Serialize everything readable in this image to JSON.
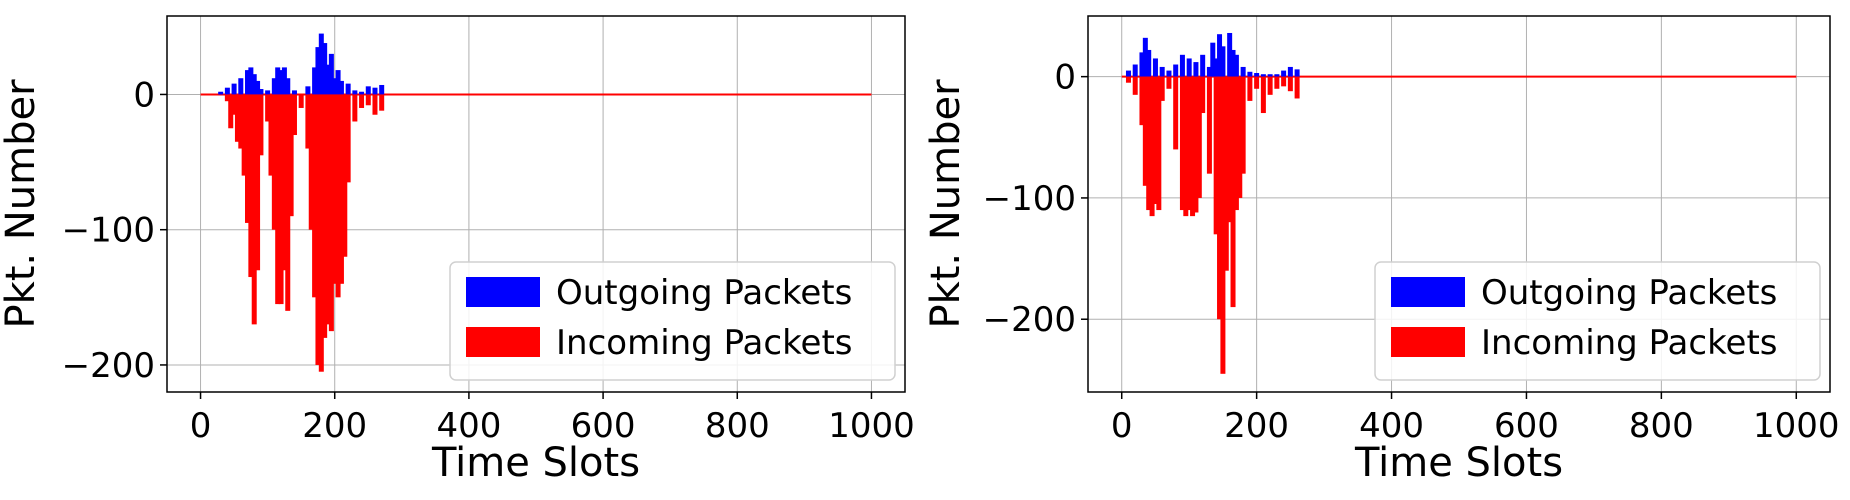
{
  "colors": {
    "outgoing": "#0000ff",
    "incoming": "#ff0000",
    "grid": "#b0b0b0",
    "axis": "#000000"
  },
  "chart_data": [
    {
      "type": "bar",
      "xlabel": "Time Slots",
      "ylabel": "Pkt. Number",
      "xlim": [
        -50,
        1050
      ],
      "ylim": [
        -220,
        58
      ],
      "xticks": [
        0,
        200,
        400,
        600,
        800,
        1000
      ],
      "xtick_labels": [
        "0",
        "200",
        "400",
        "600",
        "800",
        "1000"
      ],
      "yticks": [
        -200,
        -100,
        0
      ],
      "ytick_labels": [
        "−200",
        "−100",
        "0"
      ],
      "grid": true,
      "legend_position": "lower-right",
      "series": [
        {
          "name": "Outgoing Packets",
          "color": "#0000ff",
          "x": [
            30,
            40,
            50,
            60,
            70,
            75,
            80,
            85,
            90,
            100,
            110,
            115,
            120,
            125,
            130,
            140,
            160,
            170,
            175,
            180,
            185,
            190,
            195,
            200,
            205,
            210,
            220,
            230,
            240,
            250,
            260,
            270
          ],
          "y": [
            2,
            5,
            8,
            12,
            18,
            20,
            15,
            10,
            4,
            3,
            12,
            20,
            18,
            20,
            12,
            3,
            6,
            20,
            35,
            45,
            38,
            22,
            30,
            12,
            18,
            10,
            8,
            3,
            2,
            6,
            5,
            7
          ]
        },
        {
          "name": "Incoming Packets",
          "color": "#ff0000",
          "x": [
            40,
            45,
            50,
            55,
            60,
            65,
            70,
            75,
            80,
            85,
            90,
            100,
            105,
            110,
            115,
            120,
            125,
            130,
            135,
            140,
            150,
            160,
            165,
            170,
            175,
            180,
            185,
            190,
            195,
            200,
            205,
            210,
            215,
            220,
            230,
            240,
            250,
            260,
            270
          ],
          "y": [
            -5,
            -25,
            -15,
            -35,
            -40,
            -60,
            -95,
            -135,
            -170,
            -130,
            -45,
            -20,
            -60,
            -100,
            -155,
            -155,
            -130,
            -160,
            -90,
            -30,
            -10,
            -40,
            -100,
            -150,
            -200,
            -205,
            -180,
            -170,
            -175,
            -140,
            -150,
            -140,
            -120,
            -65,
            -20,
            -10,
            -8,
            -15,
            -12
          ]
        }
      ]
    },
    {
      "type": "bar",
      "xlabel": "Time Slots",
      "ylabel": "Pkt. Number",
      "xlim": [
        -50,
        1050
      ],
      "ylim": [
        -260,
        50
      ],
      "xticks": [
        0,
        200,
        400,
        600,
        800,
        1000
      ],
      "xtick_labels": [
        "0",
        "200",
        "400",
        "600",
        "800",
        "1000"
      ],
      "yticks": [
        -200,
        -100,
        0
      ],
      "ytick_labels": [
        "−200",
        "−100",
        "0"
      ],
      "grid": true,
      "legend_position": "lower-right",
      "series": [
        {
          "name": "Outgoing Packets",
          "color": "#0000ff",
          "x": [
            10,
            20,
            30,
            35,
            40,
            50,
            60,
            70,
            80,
            90,
            100,
            110,
            120,
            130,
            135,
            140,
            145,
            150,
            160,
            165,
            170,
            180,
            190,
            200,
            210,
            220,
            230,
            240,
            250,
            260
          ],
          "y": [
            5,
            10,
            20,
            32,
            22,
            15,
            8,
            5,
            10,
            18,
            15,
            12,
            18,
            8,
            28,
            15,
            35,
            25,
            36,
            22,
            18,
            8,
            4,
            3,
            2,
            2,
            2,
            5,
            8,
            6
          ]
        },
        {
          "name": "Incoming Packets",
          "color": "#ff0000",
          "x": [
            10,
            20,
            30,
            35,
            40,
            45,
            50,
            55,
            60,
            70,
            80,
            90,
            95,
            100,
            105,
            110,
            115,
            120,
            130,
            140,
            145,
            150,
            155,
            160,
            165,
            170,
            175,
            180,
            190,
            200,
            210,
            220,
            230,
            240,
            250,
            260
          ],
          "y": [
            -5,
            -15,
            -40,
            -90,
            -110,
            -115,
            -105,
            -110,
            -20,
            -10,
            -60,
            -110,
            -115,
            -110,
            -115,
            -112,
            -100,
            -30,
            -80,
            -130,
            -200,
            -245,
            -160,
            -120,
            -190,
            -110,
            -100,
            -80,
            -20,
            -10,
            -30,
            -15,
            -10,
            -8,
            -12,
            -18
          ]
        }
      ]
    }
  ]
}
